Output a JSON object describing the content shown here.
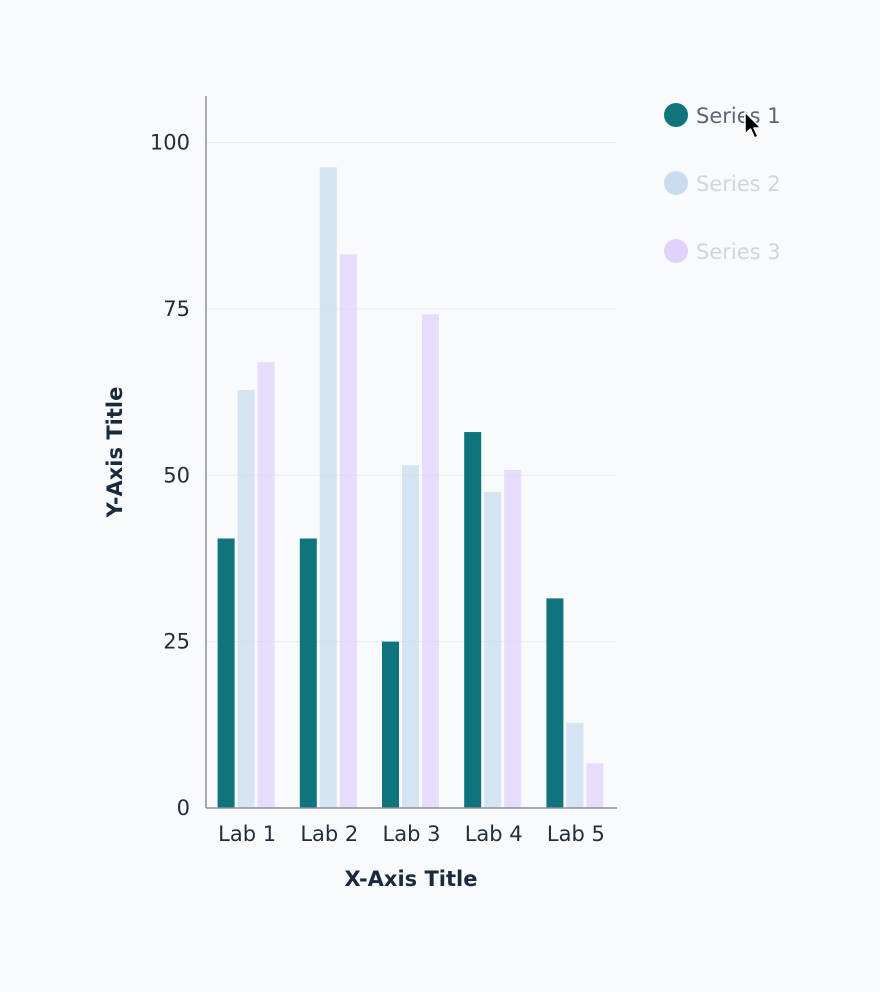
{
  "chart_data": {
    "type": "bar",
    "categories": [
      "Lab 1",
      "Lab 2",
      "Lab 3",
      "Lab 4",
      "Lab 5"
    ],
    "series": [
      {
        "name": "Series 1",
        "values": [
          40.5,
          40.5,
          25,
          56.5,
          31.5
        ],
        "color": "#10747c",
        "legend_label_color": "#5b6577",
        "opacity": 1
      },
      {
        "name": "Series 2",
        "values": [
          62.8,
          96.3,
          51.5,
          47.5,
          12.8
        ],
        "color": "#c9dcf0",
        "legend_label_color": "#cfd5de",
        "opacity": 0.75
      },
      {
        "name": "Series 3",
        "values": [
          67,
          83.2,
          74.2,
          50.8,
          6.7
        ],
        "color": "#e2d2fb",
        "legend_label_color": "#cfd5de",
        "opacity": 0.75
      }
    ],
    "xlabel": "X-Axis Title",
    "ylabel": "Y-Axis Title",
    "ylim": [
      0,
      107
    ],
    "yticks": [
      0,
      25,
      50,
      75,
      100
    ],
    "grid": true,
    "legend": "top-right"
  },
  "colors": {
    "background": "#f8fafc",
    "axis": "#8a909a",
    "grid": "#e8ecf1",
    "cursor": "#000000"
  },
  "cursor_icon": "arrow-cursor-icon"
}
